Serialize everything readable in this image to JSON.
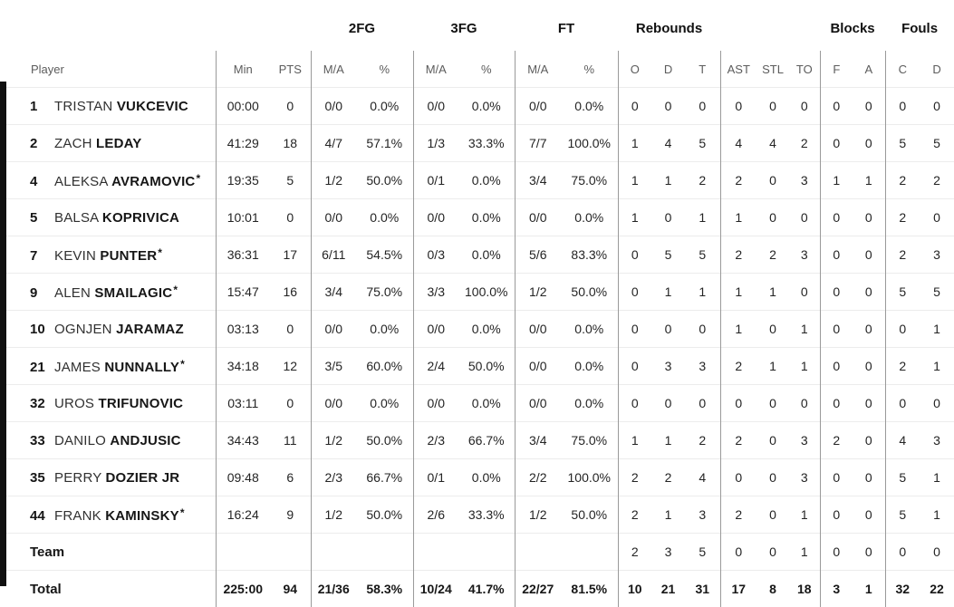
{
  "team_color": "#101010",
  "table": {
    "group_headers": [
      "2FG",
      "3FG",
      "FT",
      "Rebounds",
      "Blocks",
      "Fouls"
    ],
    "sub_headers": [
      "Player",
      "Min",
      "PTS",
      "M/A",
      "%",
      "M/A",
      "%",
      "M/A",
      "%",
      "O",
      "D",
      "T",
      "AST",
      "STL",
      "TO",
      "F",
      "A",
      "C",
      "D"
    ],
    "column_keys": [
      "min",
      "pts",
      "fg2_ma",
      "fg2_pct",
      "fg3_ma",
      "fg3_pct",
      "ft_ma",
      "ft_pct",
      "reb_o",
      "reb_d",
      "reb_t",
      "ast",
      "stl",
      "to",
      "blk_f",
      "blk_a",
      "foul_c",
      "foul_d"
    ],
    "rows": [
      {
        "num": "1",
        "first": "TRISTAN",
        "last": "VUKCEVIC",
        "star": "",
        "min": "00:00",
        "pts": "0",
        "fg2_ma": "0/0",
        "fg2_pct": "0.0%",
        "fg3_ma": "0/0",
        "fg3_pct": "0.0%",
        "ft_ma": "0/0",
        "ft_pct": "0.0%",
        "reb_o": "0",
        "reb_d": "0",
        "reb_t": "0",
        "ast": "0",
        "stl": "0",
        "to": "0",
        "blk_f": "0",
        "blk_a": "0",
        "foul_c": "0",
        "foul_d": "0"
      },
      {
        "num": "2",
        "first": "ZACH",
        "last": "LEDAY",
        "star": "",
        "min": "41:29",
        "pts": "18",
        "fg2_ma": "4/7",
        "fg2_pct": "57.1%",
        "fg3_ma": "1/3",
        "fg3_pct": "33.3%",
        "ft_ma": "7/7",
        "ft_pct": "100.0%",
        "reb_o": "1",
        "reb_d": "4",
        "reb_t": "5",
        "ast": "4",
        "stl": "4",
        "to": "2",
        "blk_f": "0",
        "blk_a": "0",
        "foul_c": "5",
        "foul_d": "5"
      },
      {
        "num": "4",
        "first": "ALEKSA",
        "last": "AVRAMOVIC",
        "star": "*",
        "min": "19:35",
        "pts": "5",
        "fg2_ma": "1/2",
        "fg2_pct": "50.0%",
        "fg3_ma": "0/1",
        "fg3_pct": "0.0%",
        "ft_ma": "3/4",
        "ft_pct": "75.0%",
        "reb_o": "1",
        "reb_d": "1",
        "reb_t": "2",
        "ast": "2",
        "stl": "0",
        "to": "3",
        "blk_f": "1",
        "blk_a": "1",
        "foul_c": "2",
        "foul_d": "2"
      },
      {
        "num": "5",
        "first": "BALSA",
        "last": "KOPRIVICA",
        "star": "",
        "min": "10:01",
        "pts": "0",
        "fg2_ma": "0/0",
        "fg2_pct": "0.0%",
        "fg3_ma": "0/0",
        "fg3_pct": "0.0%",
        "ft_ma": "0/0",
        "ft_pct": "0.0%",
        "reb_o": "1",
        "reb_d": "0",
        "reb_t": "1",
        "ast": "1",
        "stl": "0",
        "to": "0",
        "blk_f": "0",
        "blk_a": "0",
        "foul_c": "2",
        "foul_d": "0"
      },
      {
        "num": "7",
        "first": "KEVIN",
        "last": "PUNTER",
        "star": "*",
        "min": "36:31",
        "pts": "17",
        "fg2_ma": "6/11",
        "fg2_pct": "54.5%",
        "fg3_ma": "0/3",
        "fg3_pct": "0.0%",
        "ft_ma": "5/6",
        "ft_pct": "83.3%",
        "reb_o": "0",
        "reb_d": "5",
        "reb_t": "5",
        "ast": "2",
        "stl": "2",
        "to": "3",
        "blk_f": "0",
        "blk_a": "0",
        "foul_c": "2",
        "foul_d": "3"
      },
      {
        "num": "9",
        "first": "ALEN",
        "last": "SMAILAGIC",
        "star": "*",
        "min": "15:47",
        "pts": "16",
        "fg2_ma": "3/4",
        "fg2_pct": "75.0%",
        "fg3_ma": "3/3",
        "fg3_pct": "100.0%",
        "ft_ma": "1/2",
        "ft_pct": "50.0%",
        "reb_o": "0",
        "reb_d": "1",
        "reb_t": "1",
        "ast": "1",
        "stl": "1",
        "to": "0",
        "blk_f": "0",
        "blk_a": "0",
        "foul_c": "5",
        "foul_d": "5"
      },
      {
        "num": "10",
        "first": "OGNJEN",
        "last": "JARAMAZ",
        "star": "",
        "min": "03:13",
        "pts": "0",
        "fg2_ma": "0/0",
        "fg2_pct": "0.0%",
        "fg3_ma": "0/0",
        "fg3_pct": "0.0%",
        "ft_ma": "0/0",
        "ft_pct": "0.0%",
        "reb_o": "0",
        "reb_d": "0",
        "reb_t": "0",
        "ast": "1",
        "stl": "0",
        "to": "1",
        "blk_f": "0",
        "blk_a": "0",
        "foul_c": "0",
        "foul_d": "1"
      },
      {
        "num": "21",
        "first": "JAMES",
        "last": "NUNNALLY",
        "star": "*",
        "min": "34:18",
        "pts": "12",
        "fg2_ma": "3/5",
        "fg2_pct": "60.0%",
        "fg3_ma": "2/4",
        "fg3_pct": "50.0%",
        "ft_ma": "0/0",
        "ft_pct": "0.0%",
        "reb_o": "0",
        "reb_d": "3",
        "reb_t": "3",
        "ast": "2",
        "stl": "1",
        "to": "1",
        "blk_f": "0",
        "blk_a": "0",
        "foul_c": "2",
        "foul_d": "1"
      },
      {
        "num": "32",
        "first": "UROS",
        "last": "TRIFUNOVIC",
        "star": "",
        "min": "03:11",
        "pts": "0",
        "fg2_ma": "0/0",
        "fg2_pct": "0.0%",
        "fg3_ma": "0/0",
        "fg3_pct": "0.0%",
        "ft_ma": "0/0",
        "ft_pct": "0.0%",
        "reb_o": "0",
        "reb_d": "0",
        "reb_t": "0",
        "ast": "0",
        "stl": "0",
        "to": "0",
        "blk_f": "0",
        "blk_a": "0",
        "foul_c": "0",
        "foul_d": "0"
      },
      {
        "num": "33",
        "first": "DANILO",
        "last": "ANDJUSIC",
        "star": "",
        "min": "34:43",
        "pts": "11",
        "fg2_ma": "1/2",
        "fg2_pct": "50.0%",
        "fg3_ma": "2/3",
        "fg3_pct": "66.7%",
        "ft_ma": "3/4",
        "ft_pct": "75.0%",
        "reb_o": "1",
        "reb_d": "1",
        "reb_t": "2",
        "ast": "2",
        "stl": "0",
        "to": "3",
        "blk_f": "2",
        "blk_a": "0",
        "foul_c": "4",
        "foul_d": "3"
      },
      {
        "num": "35",
        "first": "PERRY",
        "last": "DOZIER JR",
        "star": "",
        "min": "09:48",
        "pts": "6",
        "fg2_ma": "2/3",
        "fg2_pct": "66.7%",
        "fg3_ma": "0/1",
        "fg3_pct": "0.0%",
        "ft_ma": "2/2",
        "ft_pct": "100.0%",
        "reb_o": "2",
        "reb_d": "2",
        "reb_t": "4",
        "ast": "0",
        "stl": "0",
        "to": "3",
        "blk_f": "0",
        "blk_a": "0",
        "foul_c": "5",
        "foul_d": "1"
      },
      {
        "num": "44",
        "first": "FRANK",
        "last": "KAMINSKY",
        "star": "*",
        "min": "16:24",
        "pts": "9",
        "fg2_ma": "1/2",
        "fg2_pct": "50.0%",
        "fg3_ma": "2/6",
        "fg3_pct": "33.3%",
        "ft_ma": "1/2",
        "ft_pct": "50.0%",
        "reb_o": "2",
        "reb_d": "1",
        "reb_t": "3",
        "ast": "2",
        "stl": "0",
        "to": "1",
        "blk_f": "0",
        "blk_a": "0",
        "foul_c": "5",
        "foul_d": "1"
      },
      {
        "label": "Team",
        "min": "",
        "pts": "",
        "fg2_ma": "",
        "fg2_pct": "",
        "fg3_ma": "",
        "fg3_pct": "",
        "ft_ma": "",
        "ft_pct": "",
        "reb_o": "2",
        "reb_d": "3",
        "reb_t": "5",
        "ast": "0",
        "stl": "0",
        "to": "1",
        "blk_f": "0",
        "blk_a": "0",
        "foul_c": "0",
        "foul_d": "0"
      },
      {
        "label": "Total",
        "bold": true,
        "min": "225:00",
        "pts": "94",
        "fg2_ma": "21/36",
        "fg2_pct": "58.3%",
        "fg3_ma": "10/24",
        "fg3_pct": "41.7%",
        "ft_ma": "22/27",
        "ft_pct": "81.5%",
        "reb_o": "10",
        "reb_d": "21",
        "reb_t": "31",
        "ast": "17",
        "stl": "8",
        "to": "18",
        "blk_f": "3",
        "blk_a": "1",
        "foul_c": "32",
        "foul_d": "22"
      }
    ]
  }
}
